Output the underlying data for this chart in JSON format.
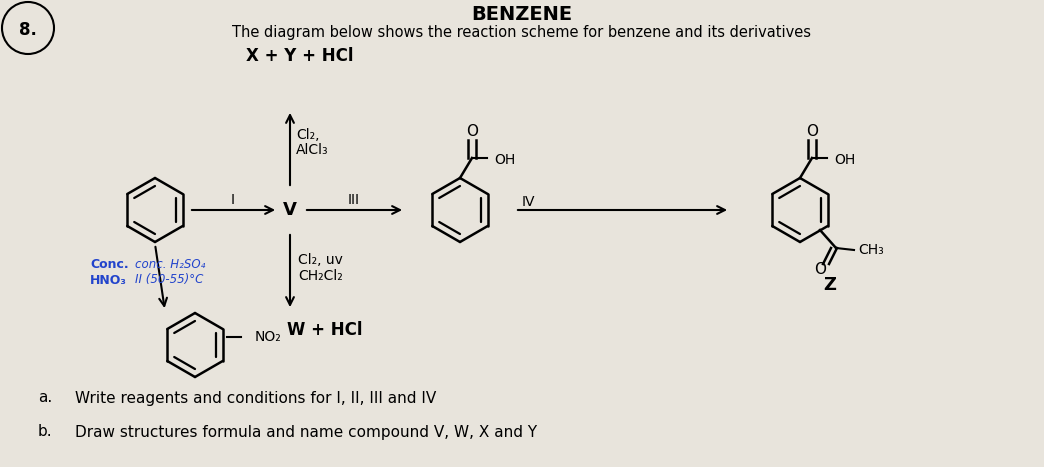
{
  "bg_color": "#c8c8c8",
  "title": "BENZENE",
  "subtitle": "The diagram below shows the reaction scheme for benzene and its derivatives",
  "top_text": "X + Y + HCl",
  "q_num": "8.",
  "label_I": "I",
  "label_III": "III",
  "label_IV": "IV",
  "label_V": "V",
  "label_W": "W + HCl",
  "label_Z": "Z",
  "up_cond1": "Cl₂,",
  "up_cond2": "AlCl₃",
  "down_cond1": "Cl₂, uv",
  "down_cond2": "CH₂Cl₂",
  "left_rgt1": "Conc.",
  "left_rgt2": "HNO₃",
  "left_cond1": "conc. H₂SO₄",
  "left_cond2": "II (50-55)°C",
  "no2": "NO₂",
  "oh": "OH",
  "ch3": "CH₃",
  "note_a_label": "a.",
  "note_b_label": "b.",
  "note_a_text": "Write reagents and conditions for I, II, III and IV",
  "note_b_text": "Draw structures formula and name compound V, W, X and Y"
}
